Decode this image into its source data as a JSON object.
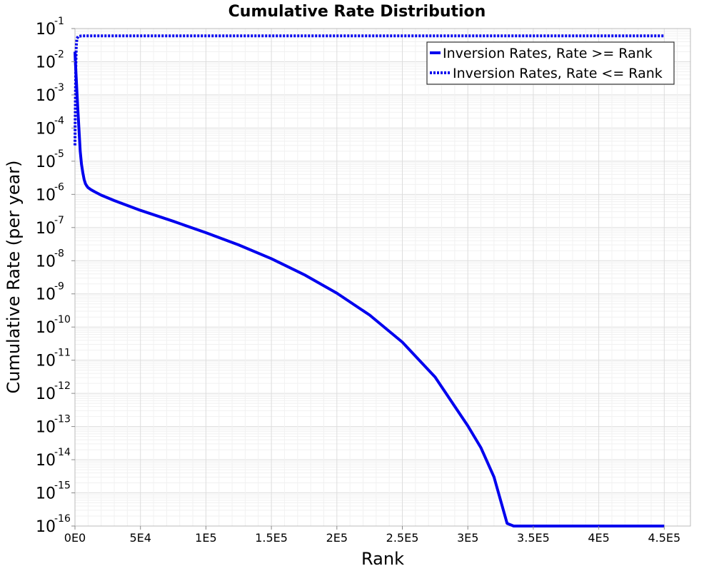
{
  "chart_data": {
    "type": "line",
    "title": "Cumulative Rate Distribution",
    "xlabel": "Rank",
    "ylabel": "Cumulative Rate (per year)",
    "xlim": [
      0,
      470000
    ],
    "ylim": [
      1e-16,
      0.1
    ],
    "yscale": "log",
    "grid": true,
    "legend_position": "top-right",
    "x_ticks": [
      "0E0",
      "5E4",
      "1E5",
      "1.5E5",
      "2E5",
      "2.5E5",
      "3E5",
      "3.5E5",
      "4E5",
      "4.5E5"
    ],
    "x_tick_values": [
      0,
      50000,
      100000,
      150000,
      200000,
      250000,
      300000,
      350000,
      400000,
      450000
    ],
    "y_ticks": [
      {
        "base": "10",
        "exp": "-1"
      },
      {
        "base": "10",
        "exp": "-2"
      },
      {
        "base": "10",
        "exp": "-3"
      },
      {
        "base": "10",
        "exp": "-4"
      },
      {
        "base": "10",
        "exp": "-5"
      },
      {
        "base": "10",
        "exp": "-6"
      },
      {
        "base": "10",
        "exp": "-7"
      },
      {
        "base": "10",
        "exp": "-8"
      },
      {
        "base": "10",
        "exp": "-9"
      },
      {
        "base": "10",
        "exp": "-10"
      },
      {
        "base": "10",
        "exp": "-11"
      },
      {
        "base": "10",
        "exp": "-12"
      },
      {
        "base": "10",
        "exp": "-13"
      },
      {
        "base": "10",
        "exp": "-14"
      },
      {
        "base": "10",
        "exp": "-15"
      },
      {
        "base": "10",
        "exp": "-16"
      }
    ],
    "series": [
      {
        "name": "Inversion Rates, Rate >= Rank",
        "color": "#0000ee",
        "style": "solid",
        "x": [
          0,
          300,
          1000,
          2000,
          3000,
          4000,
          5000,
          6000,
          7000,
          8000,
          9000,
          10000,
          11000,
          12000,
          15000,
          20000,
          30000,
          50000,
          75000,
          100000,
          125000,
          150000,
          175000,
          200000,
          225000,
          250000,
          275000,
          300000,
          310000,
          320000,
          330000,
          335000,
          340000,
          345000,
          450000
        ],
        "y": [
          0.02,
          0.01,
          0.003,
          0.0005,
          0.0001,
          2e-05,
          8e-06,
          4.5e-06,
          2.8e-06,
          2.1e-06,
          1.8e-06,
          1.6e-06,
          1.5e-06,
          1.4e-06,
          1.2e-06,
          9.5e-07,
          6.5e-07,
          3.3e-07,
          1.55e-07,
          7e-08,
          3e-08,
          1.15e-08,
          3.8e-09,
          1.05e-09,
          2.3e-10,
          3.5e-11,
          3.1e-12,
          1.05e-13,
          2.3e-14,
          3e-15,
          1.2e-16,
          1e-16,
          1e-16,
          1e-16,
          1e-16
        ]
      },
      {
        "name": "Inversion Rates, Rate <= Rank",
        "color": "#0000ee",
        "style": "dotted",
        "x": [
          0,
          300,
          600,
          1000,
          1500,
          2500,
          5000,
          50000,
          100000,
          200000,
          300000,
          400000,
          450000
        ],
        "y": [
          3e-05,
          0.0006,
          0.006,
          0.03,
          0.05,
          0.058,
          0.06,
          0.06,
          0.06,
          0.06,
          0.06,
          0.06,
          0.06
        ]
      }
    ]
  }
}
